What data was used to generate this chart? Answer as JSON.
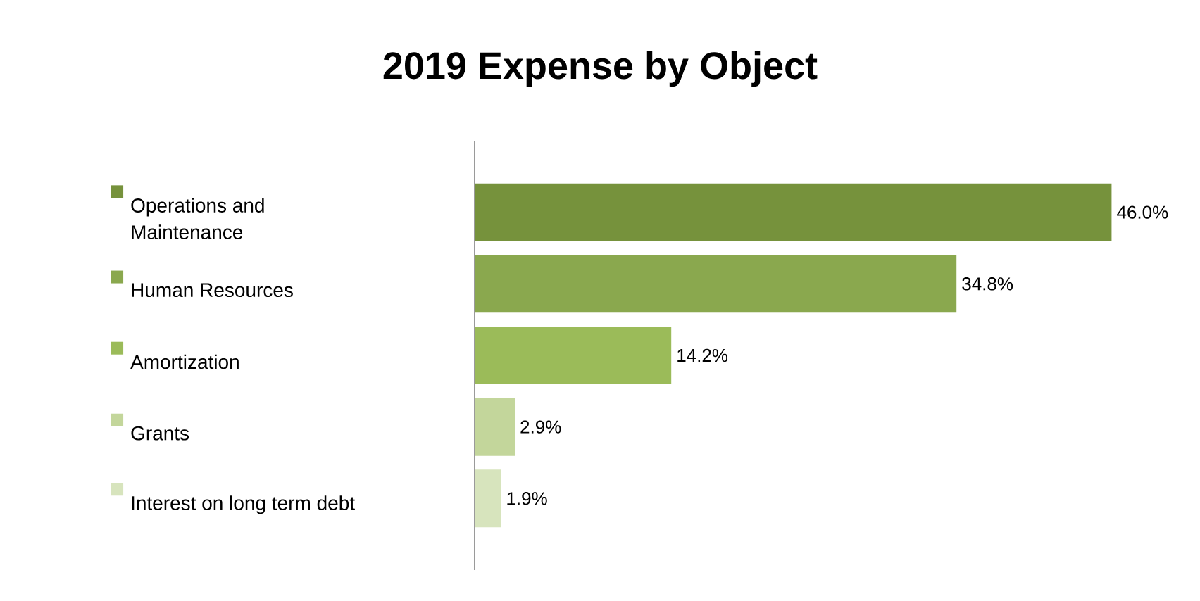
{
  "chart_data": {
    "type": "bar",
    "title": "2019 Expense by Object",
    "orientation": "horizontal",
    "categories": [
      "Operations and Maintenance",
      "Human Resources",
      "Amortization",
      "Grants",
      "Interest on long term debt"
    ],
    "values": [
      46.0,
      34.8,
      14.2,
      2.9,
      1.9
    ],
    "value_labels": [
      "46.0%",
      "34.8%",
      "14.2%",
      "2.9%",
      "1.9%"
    ],
    "colors": [
      "#76923c",
      "#8aa84e",
      "#9bbb59",
      "#c3d69b",
      "#d7e4bd"
    ]
  }
}
